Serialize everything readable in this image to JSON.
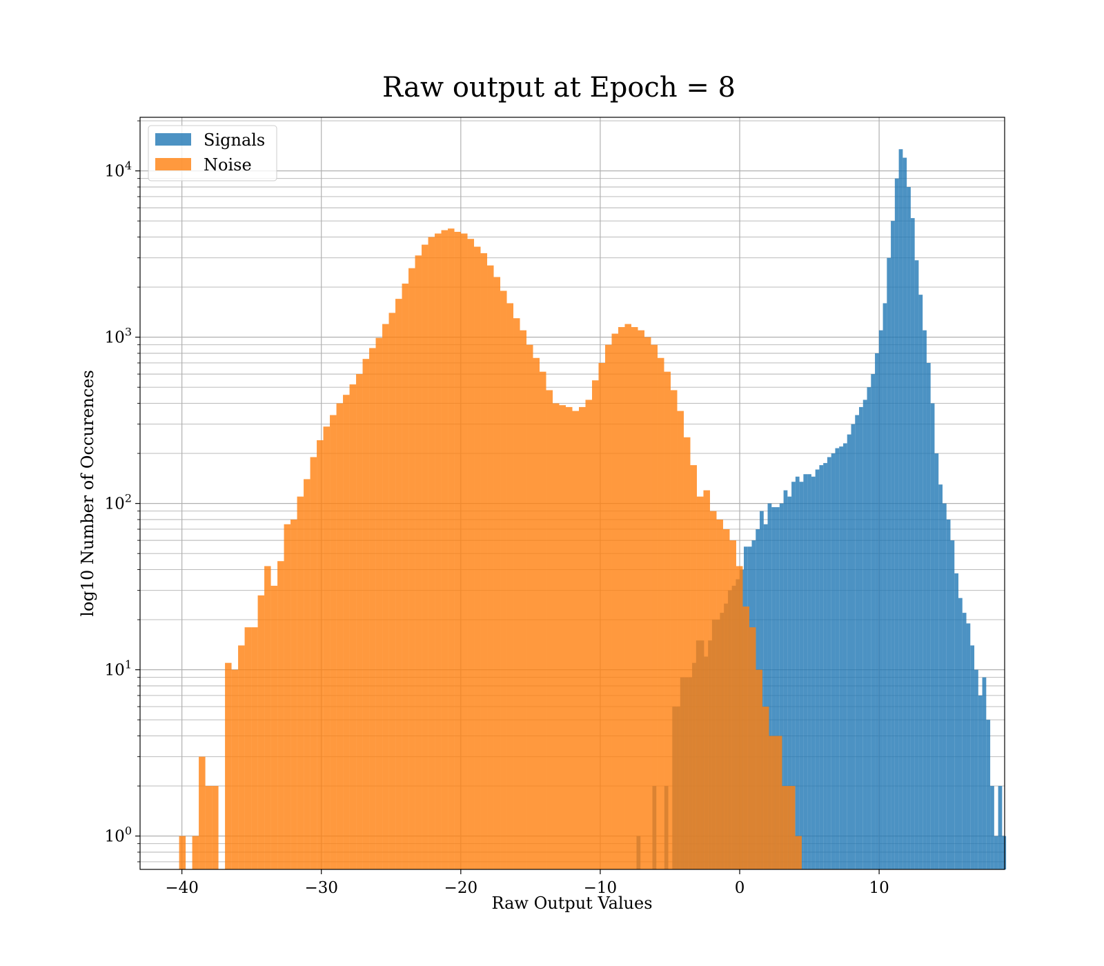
{
  "chart_data": {
    "type": "bar",
    "title": "Raw output at Epoch = 8",
    "xlabel": "Raw Output Values",
    "ylabel": "log10 Number of Occurences",
    "xlim": [
      -43,
      19
    ],
    "ylim": [
      0.63,
      21000
    ],
    "yscale": "log",
    "grid": "both",
    "legend_position": "top-left",
    "x_ticks": [
      -40,
      -30,
      -20,
      -10,
      0,
      10
    ],
    "x_tick_labels": [
      "−40",
      "−30",
      "−20",
      "−10",
      "0",
      "10"
    ],
    "y_ticks": [
      1,
      10,
      100,
      1000,
      10000
    ],
    "y_tick_bases": [
      "10",
      "10",
      "10",
      "10",
      "10"
    ],
    "y_tick_exponents": [
      "0",
      "1",
      "2",
      "3",
      "4"
    ],
    "series": [
      {
        "name": "Signals",
        "color": "#1f77b4",
        "opacity": 0.8,
        "bin_start": -7.4,
        "bin_width": 0.285,
        "values": [
          1,
          0,
          0,
          0,
          2,
          0,
          0,
          2,
          0,
          6,
          6,
          9,
          9,
          9,
          11,
          15,
          15,
          12,
          15,
          20,
          20,
          22,
          25,
          30,
          32,
          35,
          40,
          55,
          55,
          60,
          70,
          90,
          75,
          100,
          95,
          95,
          100,
          120,
          110,
          135,
          145,
          135,
          150,
          150,
          145,
          160,
          170,
          175,
          190,
          200,
          215,
          220,
          230,
          260,
          300,
          340,
          380,
          420,
          500,
          600,
          800,
          1100,
          1600,
          3000,
          5000,
          9000,
          13500,
          12000,
          8000,
          5200,
          2900,
          1800,
          1100,
          700,
          400,
          200,
          130,
          100,
          80,
          60,
          38,
          27,
          22,
          19,
          14,
          10,
          7,
          9,
          5,
          2,
          1,
          2,
          1
        ]
      },
      {
        "name": "Noise",
        "color": "#ff7f0e",
        "opacity": 0.8,
        "bin_start": -40.2,
        "bin_width": 0.47,
        "values": [
          1,
          0,
          1,
          3,
          2,
          2,
          0,
          11,
          10,
          14,
          18,
          18,
          28,
          42,
          32,
          45,
          75,
          80,
          110,
          140,
          190,
          240,
          290,
          340,
          400,
          450,
          520,
          600,
          740,
          860,
          990,
          1200,
          1400,
          1700,
          2100,
          2600,
          3100,
          3600,
          4000,
          4200,
          4400,
          4500,
          4300,
          4200,
          3900,
          3500,
          3200,
          2700,
          2300,
          1900,
          1600,
          1300,
          1100,
          900,
          750,
          620,
          480,
          400,
          390,
          380,
          360,
          380,
          420,
          550,
          700,
          900,
          1050,
          1150,
          1200,
          1150,
          1100,
          1000,
          900,
          750,
          620,
          480,
          360,
          250,
          170,
          110,
          120,
          90,
          80,
          70,
          60,
          42,
          24,
          18,
          10,
          6,
          4,
          4,
          2,
          2,
          1
        ]
      }
    ]
  }
}
